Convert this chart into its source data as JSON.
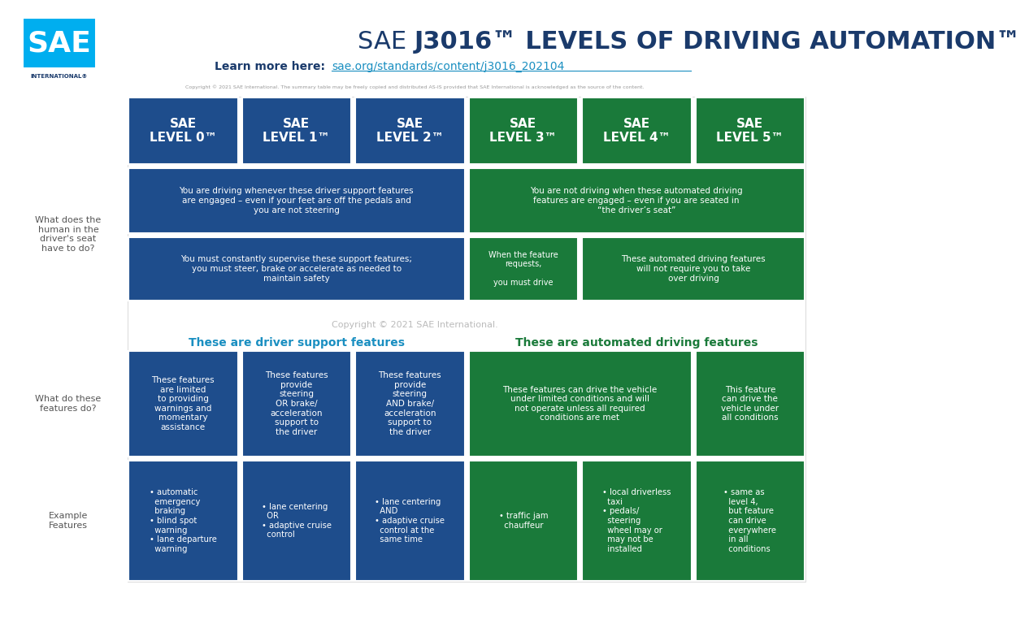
{
  "bg_color": "#ffffff",
  "blue_cell": "#1e4d8c",
  "green_cell": "#1a7a3a",
  "text_dark_blue": "#1a3a6b",
  "text_link_blue": "#1a8fc1",
  "title_sae": "SAE ",
  "title_bold": "J3016™ LEVELS OF DRIVING AUTOMATION™",
  "subtitle_label": "Learn more here:",
  "subtitle_link": "sae.org/standards/content/j3016_202104",
  "copyright_small": "Copyright © 2021 SAE International. The summary table may be freely copied and distributed AS-IS provided that SAE International is acknowledged as the source of the content.",
  "copyright_center": "Copyright © 2021 SAE International.",
  "levels": [
    "SAE\nLEVEL 0™",
    "SAE\nLEVEL 1™",
    "SAE\nLEVEL 2™",
    "SAE\nLEVEL 3™",
    "SAE\nLEVEL 4™",
    "SAE\nLEVEL 5™"
  ],
  "level_colors": [
    "#1e4d8c",
    "#1e4d8c",
    "#1e4d8c",
    "#1a7a3a",
    "#1a7a3a",
    "#1a7a3a"
  ],
  "row_label_1": "What does the\nhuman in the\ndriver's seat\nhave to do?",
  "row_label_2": "What do these\nfeatures do?",
  "row_label_3": "Example\nFeatures",
  "section_driver": "These are driver support features",
  "section_auto": "These are automated driving features",
  "r1a_blue": "You are driving whenever these driver support features\nare engaged – even if your feet are off the pedals and\nyou are not steering",
  "r1a_green": "You are not driving when these automated driving\nfeatures are engaged – even if you are seated in\n“the driver’s seat”",
  "r1b_blue": "You must constantly supervise these support features;\nyou must steer, brake or accelerate as needed to\nmaintain safety",
  "r1b_green1": "When the feature\nrequests,\n\nyou must drive",
  "r1b_green2": "These automated driving features\nwill not require you to take\nover driving",
  "feat_texts": [
    "These features\nare limited\nto providing\nwarnings and\nmomentary\nassistance",
    "These features\nprovide\nsteering\nOR brake/\nacceleration\nsupport to\nthe driver",
    "These features\nprovide\nsteering\nAND brake/\nacceleration\nsupport to\nthe driver",
    "These features can drive the vehicle\nunder limited conditions and will\nnot operate unless all required\nconditions are met",
    "This feature\ncan drive the\nvehicle under\nall conditions"
  ],
  "feat_spans": [
    1,
    1,
    1,
    2,
    1
  ],
  "feat_colors": [
    "#1e4d8c",
    "#1e4d8c",
    "#1e4d8c",
    "#1a7a3a",
    "#1a7a3a"
  ],
  "ex_texts": [
    "• automatic\n  emergency\n  braking\n• blind spot\n  warning\n• lane departure\n  warning",
    "• lane centering\n  OR\n• adaptive cruise\n  control",
    "• lane centering\n  AND\n• adaptive cruise\n  control at the\n  same time",
    "• traffic jam\n  chauffeur",
    "• local driverless\n  taxi\n• pedals/\n  steering\n  wheel may or\n  may not be\n  installed",
    "• same as\n  level 4,\n  but feature\n  can drive\n  everywhere\n  in all\n  conditions"
  ],
  "ex_colors": [
    "#1e4d8c",
    "#1e4d8c",
    "#1e4d8c",
    "#1a7a3a",
    "#1a7a3a",
    "#1a7a3a"
  ]
}
